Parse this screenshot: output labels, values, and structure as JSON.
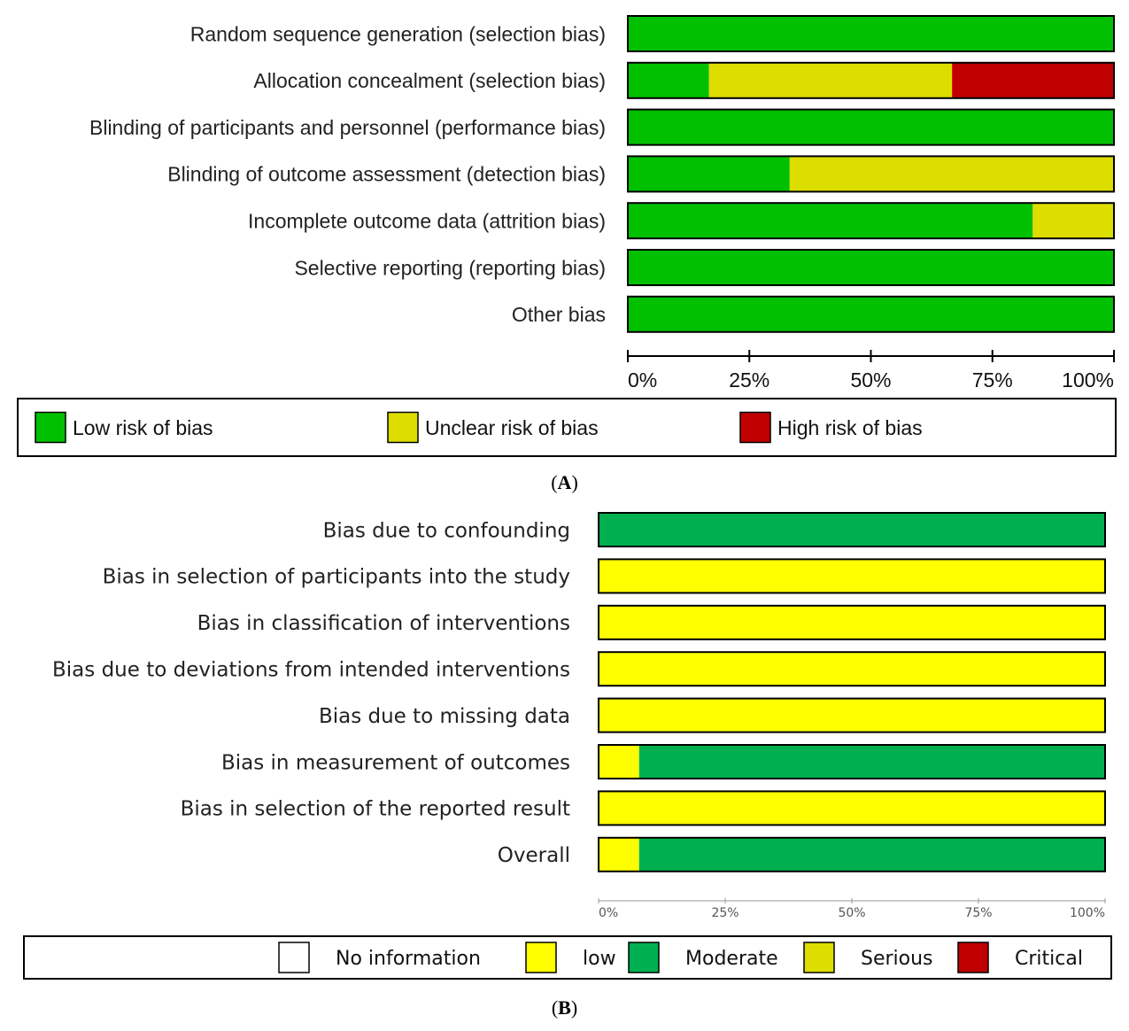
{
  "chart_data": [
    {
      "type": "bar",
      "orientation": "horizontal-stacked-percent",
      "panel": "A",
      "categories": [
        "Random sequence generation (selection bias)",
        "Allocation concealment (selection bias)",
        "Blinding of participants and personnel (performance bias)",
        "Blinding of outcome assessment (detection bias)",
        "Incomplete outcome data (attrition bias)",
        "Selective reporting (reporting bias)",
        "Other bias"
      ],
      "series": [
        {
          "name": "Low risk of bias",
          "color": "#00c000",
          "values": [
            100,
            16.7,
            100,
            33.3,
            83.3,
            100,
            100
          ]
        },
        {
          "name": "Unclear risk of bias",
          "color": "#dddd00",
          "values": [
            0,
            50,
            0,
            66.7,
            16.7,
            0,
            0
          ]
        },
        {
          "name": "High risk of bias",
          "color": "#c00000",
          "values": [
            0,
            33.3,
            0,
            0,
            0,
            0,
            0
          ]
        }
      ],
      "xticks": [
        "0%",
        "25%",
        "50%",
        "75%",
        "100%"
      ],
      "xlim": [
        0,
        100
      ],
      "legend_position": "bottom"
    },
    {
      "type": "bar",
      "orientation": "horizontal-stacked-percent",
      "panel": "B",
      "categories": [
        "Bias due to confounding",
        "Bias in selection of participants into the study",
        "Bias in classification of interventions",
        "Bias due to deviations from intended interventions",
        "Bias due to missing data",
        "Bias in measurement of outcomes",
        "Bias in selection of the reported result",
        "Overall"
      ],
      "series": [
        {
          "name": "No information",
          "color": "#ffffff",
          "values": [
            0,
            0,
            0,
            0,
            0,
            0,
            0,
            0
          ]
        },
        {
          "name": "low",
          "color": "#ffff00",
          "values": [
            0,
            100,
            100,
            100,
            100,
            8,
            100,
            8
          ]
        },
        {
          "name": "Moderate",
          "color": "#00b050",
          "values": [
            100,
            0,
            0,
            0,
            0,
            92,
            0,
            92
          ]
        },
        {
          "name": "Serious",
          "color": "#dddd00",
          "values": [
            0,
            0,
            0,
            0,
            0,
            0,
            0,
            0
          ]
        },
        {
          "name": "Critical",
          "color": "#c00000",
          "values": [
            0,
            0,
            0,
            0,
            0,
            0,
            0,
            0
          ]
        }
      ],
      "xticks": [
        "0%",
        "25%",
        "50%",
        "75%",
        "100%"
      ],
      "xlim": [
        0,
        100
      ],
      "legend_position": "bottom"
    }
  ],
  "captions": {
    "a": "A",
    "b": "B"
  }
}
